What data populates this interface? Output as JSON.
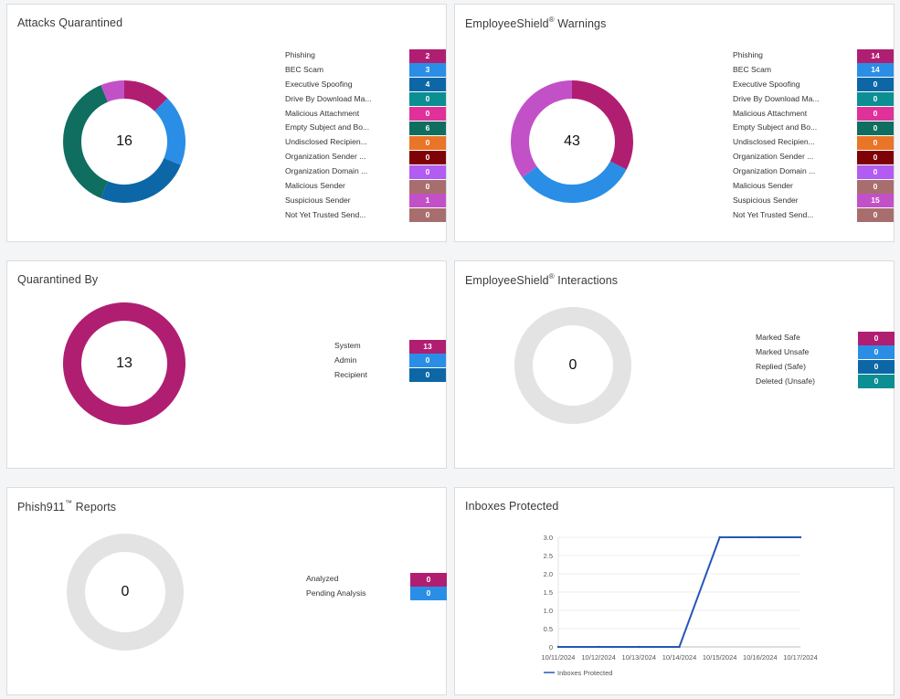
{
  "attacks": {
    "title": "Attacks Quarantined",
    "total": "16",
    "items": [
      {
        "label": "Phishing",
        "value": "2",
        "color": "#b01e72"
      },
      {
        "label": "BEC Scam",
        "value": "3",
        "color": "#2a8ee6"
      },
      {
        "label": "Executive Spoofing",
        "value": "4",
        "color": "#0d67a6"
      },
      {
        "label": "Drive By Download Ma...",
        "value": "0",
        "color": "#0b8f93"
      },
      {
        "label": "Malicious Attachment",
        "value": "0",
        "color": "#e0309a"
      },
      {
        "label": "Empty Subject and Bo...",
        "value": "6",
        "color": "#0f6e60"
      },
      {
        "label": "Undisclosed Recipien...",
        "value": "0",
        "color": "#e87528"
      },
      {
        "label": "Organization Sender ...",
        "value": "0",
        "color": "#7f0206"
      },
      {
        "label": "Organization Domain ...",
        "value": "0",
        "color": "#b25cf2"
      },
      {
        "label": "Malicious Sender",
        "value": "0",
        "color": "#a86e6e"
      },
      {
        "label": "Suspicious Sender",
        "value": "1",
        "color": "#c251c8"
      },
      {
        "label": "Not Yet Trusted Send...",
        "value": "0",
        "color": "#a86e6e"
      }
    ]
  },
  "warnings": {
    "title": "EmployeeShield",
    "title_sup": "®",
    "title_suffix": " Warnings",
    "total": "43",
    "items": [
      {
        "label": "Phishing",
        "value": "14",
        "color": "#b01e72"
      },
      {
        "label": "BEC Scam",
        "value": "14",
        "color": "#2a8ee6"
      },
      {
        "label": "Executive Spoofing",
        "value": "0",
        "color": "#0d67a6"
      },
      {
        "label": "Drive By Download Ma...",
        "value": "0",
        "color": "#0b8f93"
      },
      {
        "label": "Malicious Attachment",
        "value": "0",
        "color": "#e0309a"
      },
      {
        "label": "Empty Subject and Bo...",
        "value": "0",
        "color": "#0f6e60"
      },
      {
        "label": "Undisclosed Recipien...",
        "value": "0",
        "color": "#e87528"
      },
      {
        "label": "Organization Sender ...",
        "value": "0",
        "color": "#7f0206"
      },
      {
        "label": "Organization Domain ...",
        "value": "0",
        "color": "#b25cf2"
      },
      {
        "label": "Malicious Sender",
        "value": "0",
        "color": "#a86e6e"
      },
      {
        "label": "Suspicious Sender",
        "value": "15",
        "color": "#c251c8"
      },
      {
        "label": "Not Yet Trusted Send...",
        "value": "0",
        "color": "#a86e6e"
      }
    ]
  },
  "quarantined_by": {
    "title": "Quarantined By",
    "total": "13",
    "items": [
      {
        "label": "System",
        "value": "13",
        "color": "#b01e72"
      },
      {
        "label": "Admin",
        "value": "0",
        "color": "#2a8ee6"
      },
      {
        "label": "Recipient",
        "value": "0",
        "color": "#0d67a6"
      }
    ]
  },
  "interactions": {
    "title": "EmployeeShield",
    "title_sup": "®",
    "title_suffix": " Interactions",
    "total": "0",
    "items": [
      {
        "label": "Marked Safe",
        "value": "0",
        "color": "#b01e72"
      },
      {
        "label": "Marked Unsafe",
        "value": "0",
        "color": "#2a8ee6"
      },
      {
        "label": "Replied (Safe)",
        "value": "0",
        "color": "#0d67a6"
      },
      {
        "label": "Deleted (Unsafe)",
        "value": "0",
        "color": "#0b8f93"
      }
    ]
  },
  "phish911": {
    "title": "Phish911",
    "title_sup": "™",
    "title_suffix": " Reports",
    "total": "0",
    "items": [
      {
        "label": "Analyzed",
        "value": "0",
        "color": "#b01e72"
      },
      {
        "label": "Pending Analysis",
        "value": "0",
        "color": "#2a8ee6"
      }
    ]
  },
  "inboxes": {
    "title": "Inboxes Protected"
  },
  "chart_data": {
    "type": "line",
    "title": "",
    "xlabel": "",
    "ylabel": "",
    "x": [
      "10/11/2024",
      "10/12/2024",
      "10/13/2024",
      "10/14/2024",
      "10/15/2024",
      "10/16/2024",
      "10/17/2024"
    ],
    "series": [
      {
        "name": "Inboxes Protected",
        "values": [
          0,
          0,
          0,
          0,
          3,
          3,
          3
        ],
        "color": "#2457b8"
      }
    ],
    "yticks": [
      "0",
      "0.5",
      "1.0",
      "1.5",
      "2.0",
      "2.5",
      "3.0"
    ],
    "ylim": [
      0,
      3
    ],
    "grid": true,
    "legend": "bottom-left"
  }
}
